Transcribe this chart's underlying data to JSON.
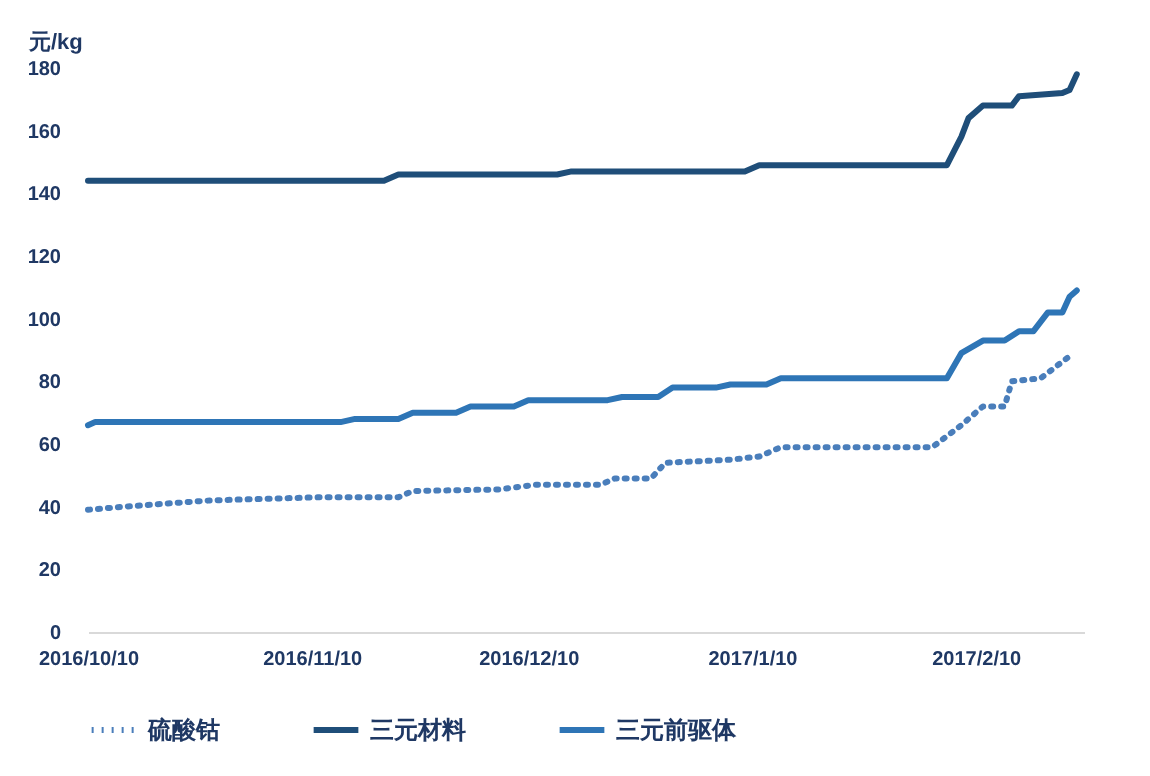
{
  "chart_data": {
    "type": "line",
    "ylabel": "元/kg",
    "xlim": [
      "2016-10-10",
      "2017-02-25"
    ],
    "ylim": [
      0,
      180
    ],
    "yticks": [
      0,
      20,
      40,
      60,
      80,
      100,
      120,
      140,
      160,
      180
    ],
    "xticks": [
      {
        "value": "2016-10-10",
        "label": "2016/10/10"
      },
      {
        "value": "2016-11-10",
        "label": "2016/11/10"
      },
      {
        "value": "2016-12-10",
        "label": "2016/12/10"
      },
      {
        "value": "2017-01-10",
        "label": "2017/1/10"
      },
      {
        "value": "2017-02-10",
        "label": "2017/2/10"
      }
    ],
    "legend": "bottom",
    "grid": false,
    "series": [
      {
        "name": "硫酸钴",
        "color": "#4a7ebb",
        "line_style": "dotted",
        "x": [
          "2016-10-10",
          "2016-10-15",
          "2016-10-27",
          "2016-11-11",
          "2016-11-22",
          "2016-11-24",
          "2016-12-06",
          "2016-12-11",
          "2016-12-20",
          "2016-12-22",
          "2016-12-27",
          "2016-12-29",
          "2017-01-07",
          "2017-01-11",
          "2017-01-14",
          "2017-02-04",
          "2017-02-08",
          "2017-02-11",
          "2017-02-14",
          "2017-02-15",
          "2017-02-19",
          "2017-02-23"
        ],
        "values": [
          39,
          40,
          42,
          43,
          43,
          45,
          45.5,
          47,
          47,
          49,
          49,
          54,
          55,
          56,
          59,
          59,
          66,
          72,
          72,
          80,
          81,
          88
        ]
      },
      {
        "name": "三元材料",
        "color": "#1f4e79",
        "line_style": "solid",
        "x": [
          "2016-10-10",
          "2016-11-20",
          "2016-11-22",
          "2016-12-14",
          "2016-12-16",
          "2017-01-09",
          "2017-01-11",
          "2017-02-06",
          "2017-02-08",
          "2017-02-09",
          "2017-02-11",
          "2017-02-15",
          "2017-02-16",
          "2017-02-22",
          "2017-02-23",
          "2017-02-24"
        ],
        "values": [
          144,
          144,
          146,
          146,
          147,
          147,
          149,
          149,
          158,
          164,
          168,
          168,
          171,
          172,
          173,
          178
        ]
      },
      {
        "name": "三元前驱体",
        "color": "#2e75b6",
        "line_style": "solid",
        "x": [
          "2016-10-10",
          "2016-10-11",
          "2016-11-14",
          "2016-11-16",
          "2016-11-22",
          "2016-11-24",
          "2016-11-30",
          "2016-12-02",
          "2016-12-08",
          "2016-12-10",
          "2016-12-21",
          "2016-12-23",
          "2016-12-28",
          "2016-12-30",
          "2017-01-05",
          "2017-01-07",
          "2017-01-12",
          "2017-01-14",
          "2017-02-06",
          "2017-02-08",
          "2017-02-11",
          "2017-02-14",
          "2017-02-16",
          "2017-02-18",
          "2017-02-20",
          "2017-02-22",
          "2017-02-23",
          "2017-02-24"
        ],
        "values": [
          66,
          67,
          67,
          68,
          68,
          70,
          70,
          72,
          72,
          74,
          74,
          75,
          75,
          78,
          78,
          79,
          79,
          81,
          81,
          89,
          93,
          93,
          96,
          96,
          102,
          102,
          107,
          109
        ]
      }
    ]
  }
}
